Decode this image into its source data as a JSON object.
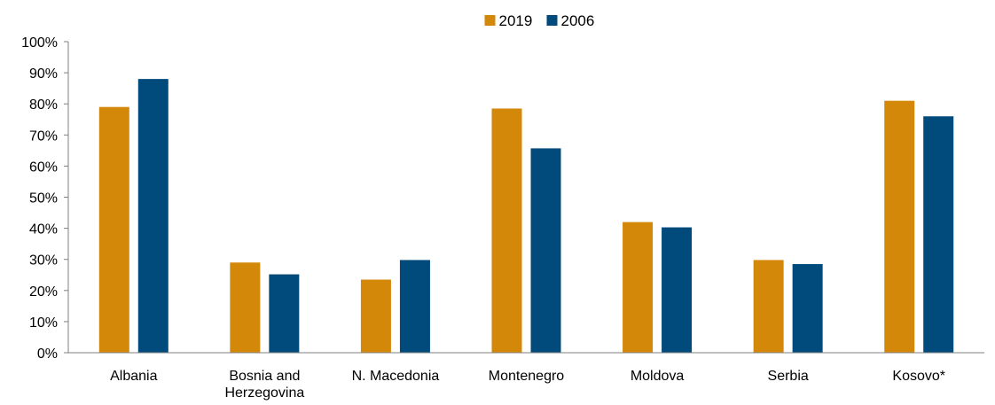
{
  "chart_data": {
    "type": "bar",
    "title": "",
    "xlabel": "",
    "ylabel": "",
    "ylim": [
      0,
      100
    ],
    "y_ticks": [
      0,
      10,
      20,
      30,
      40,
      50,
      60,
      70,
      80,
      90,
      100
    ],
    "y_tick_labels": [
      "0%",
      "10%",
      "20%",
      "30%",
      "40%",
      "50%",
      "60%",
      "70%",
      "80%",
      "90%",
      "100%"
    ],
    "categories": [
      [
        "Albania"
      ],
      [
        "Bosnia and",
        "Herzegovina"
      ],
      [
        "N. Macedonia"
      ],
      [
        "Montenegro"
      ],
      [
        "Moldova"
      ],
      [
        "Serbia"
      ],
      [
        "Kosovo*"
      ]
    ],
    "series": [
      {
        "name": "2019",
        "color": "#D4880A",
        "values": [
          79,
          29,
          23.5,
          78.5,
          42,
          29.8,
          81
        ]
      },
      {
        "name": "2006",
        "color": "#004A7C",
        "values": [
          88,
          25.2,
          29.8,
          65.7,
          40.3,
          28.5,
          76
        ]
      }
    ],
    "legend_position": "top-center",
    "grid": false
  }
}
